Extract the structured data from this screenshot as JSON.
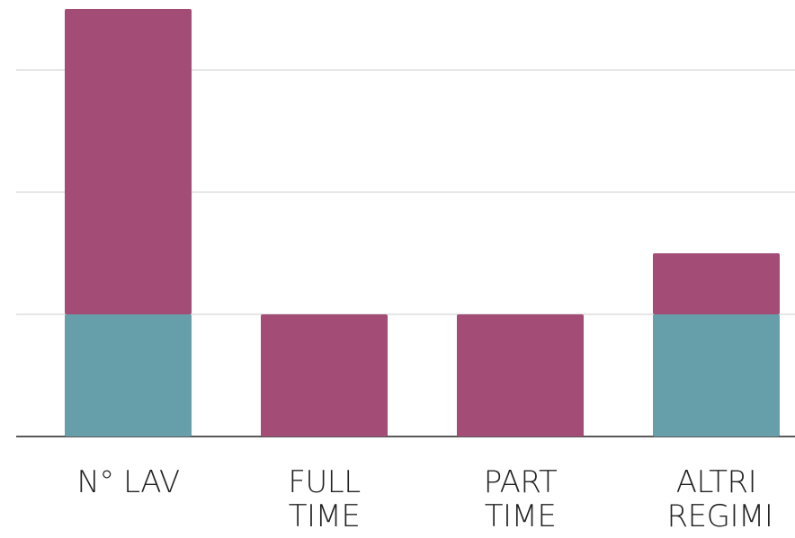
{
  "chart_data": {
    "type": "stacked_bar",
    "categories": [
      "N° LAV",
      "FULL TIME",
      "PART TIME",
      "ALTRI REGIMI"
    ],
    "series": [
      {
        "color": "#669ea9",
        "values": [
          1,
          0,
          0,
          1
        ]
      },
      {
        "color": "#a34c76",
        "values": [
          2.5,
          1,
          1,
          0.5
        ]
      }
    ],
    "ylim": [
      0,
      3.6
    ],
    "yticks": [
      0,
      1,
      2,
      3
    ],
    "grid": true
  }
}
